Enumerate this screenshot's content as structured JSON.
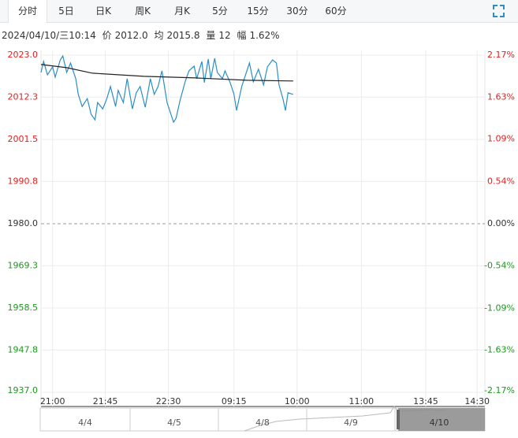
{
  "tabs": [
    "分时",
    "5日",
    "日K",
    "周K",
    "月K",
    "5分",
    "15分",
    "30分",
    "60分"
  ],
  "info": {
    "datetime": "2024/04/10/三10:14",
    "price_label": "价",
    "price": "2012.0",
    "avg_label": "均",
    "avg": "2015.8",
    "volume_label": "量",
    "volume": "12",
    "range_label": "幅",
    "range": "1.62%"
  },
  "navigator": {
    "dates": [
      "4/4",
      "4/5",
      "4/8",
      "4/9",
      "4/10"
    ]
  },
  "chart_data": {
    "type": "line",
    "xlim": [
      0,
      345
    ],
    "xticks": [
      {
        "value": 9,
        "label": "21:00"
      },
      {
        "value": 50,
        "label": "21:45"
      },
      {
        "value": 99,
        "label": "22:30"
      },
      {
        "value": 150,
        "label": "09:15"
      },
      {
        "value": 199,
        "label": "10:00"
      },
      {
        "value": 249,
        "label": "11:00"
      },
      {
        "value": 299,
        "label": "13:45"
      },
      {
        "value": 339,
        "label": "14:30"
      }
    ],
    "ylim": [
      1937,
      2023
    ],
    "yticks": [
      {
        "value": 2023,
        "label": "2023.0"
      },
      {
        "value": 2012.3,
        "label": "2012.3"
      },
      {
        "value": 2001.5,
        "label": "2001.5"
      },
      {
        "value": 1990.8,
        "label": "1990.8"
      },
      {
        "value": 1980,
        "label": "1980.0"
      },
      {
        "value": 1969.3,
        "label": "1969.3"
      },
      {
        "value": 1958.5,
        "label": "1958.5"
      },
      {
        "value": 1947.8,
        "label": "1947.8"
      },
      {
        "value": 1937,
        "label": "1937.0"
      }
    ],
    "y2lim": [
      -2.17,
      2.17
    ],
    "y2ticks": [
      {
        "value": 2.17,
        "label": "2.17%"
      },
      {
        "value": 1.63,
        "label": "1.63%"
      },
      {
        "value": 1.09,
        "label": "1.09%"
      },
      {
        "value": 0.54,
        "label": "0.54%"
      },
      {
        "value": 0,
        "label": "0.00%"
      },
      {
        "value": -0.54,
        "label": "-0.54%"
      },
      {
        "value": -1.09,
        "label": "-1.09%"
      },
      {
        "value": -1.63,
        "label": "-1.63%"
      },
      {
        "value": -2.17,
        "label": "-2.17%"
      }
    ],
    "grid": true,
    "series": [
      {
        "color": "#2b8fc4",
        "x": [
          0,
          2,
          5,
          9,
          11,
          15,
          17,
          20,
          23,
          27,
          29,
          32,
          36,
          39,
          42,
          44,
          48,
          51,
          54,
          58,
          60,
          64,
          67,
          71,
          74,
          77,
          81,
          85,
          88,
          91,
          94,
          98,
          100,
          103,
          105,
          108,
          112,
          115,
          119,
          121,
          125,
          127,
          130,
          132,
          135,
          137,
          141,
          143,
          147,
          150,
          152,
          156,
          158,
          162,
          165,
          169,
          173,
          176,
          180,
          183,
          185,
          188,
          190,
          192,
          196
        ],
        "values": [
          2018.6,
          2021.4,
          2018.0,
          2020.0,
          2017.4,
          2021.8,
          2022.8,
          2018.6,
          2021.0,
          2017.0,
          2013.0,
          2009.9,
          2011.9,
          2007.9,
          2006.5,
          2010.9,
          2009.3,
          2011.7,
          2015.0,
          2009.9,
          2014.0,
          2010.9,
          2017.0,
          2009.3,
          2013.4,
          2015.0,
          2009.7,
          2017.0,
          2013.0,
          2015.0,
          2019.0,
          2010.9,
          2008.9,
          2005.9,
          2006.9,
          2011.3,
          2016.2,
          2019.0,
          2020.2,
          2017.0,
          2021.4,
          2016.0,
          2022.0,
          2017.0,
          2022.2,
          2018.6,
          2017.0,
          2019.0,
          2016.0,
          2013.0,
          2008.9,
          2015.0,
          2017.0,
          2021.0,
          2016.2,
          2019.4,
          2015.4,
          2020.0,
          2021.8,
          2021.0,
          2015.4,
          2011.9,
          2008.9,
          2013.4,
          2013.0
        ]
      },
      {
        "color": "#222222",
        "x": [
          0,
          20,
          40,
          80,
          120,
          160,
          196
        ],
        "values": [
          2020.6,
          2019.8,
          2018.4,
          2017.6,
          2017.2,
          2016.6,
          2016.4
        ]
      }
    ]
  }
}
